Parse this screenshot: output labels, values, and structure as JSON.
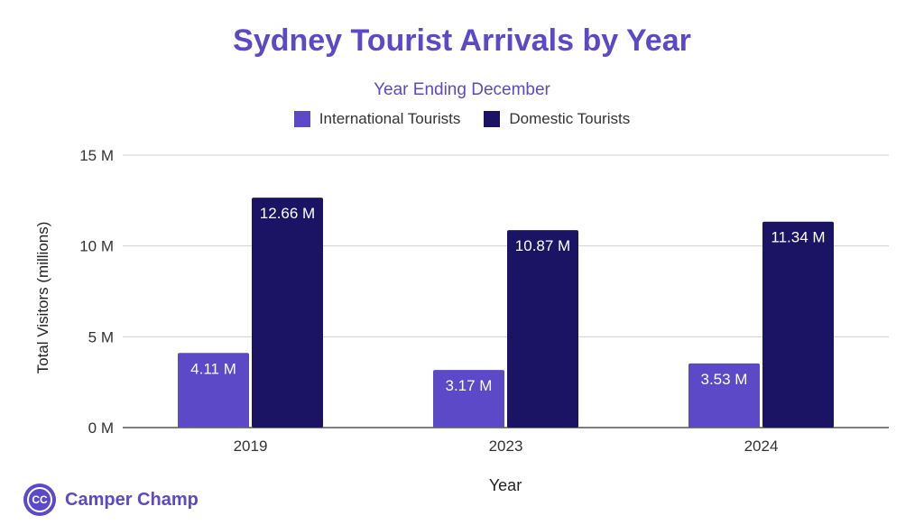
{
  "chart_data": {
    "type": "bar",
    "title": "Sydney Tourist Arrivals by Year",
    "subtitle": "Year Ending December",
    "xlabel": "Year",
    "ylabel": "Total Visitors (millions)",
    "categories": [
      "2019",
      "2023",
      "2024"
    ],
    "series": [
      {
        "name": "International Tourists",
        "color": "#5b49c7",
        "values": [
          4.11,
          3.17,
          3.53
        ],
        "labels": [
          "4.11 M",
          "3.17 M",
          "3.53 M"
        ]
      },
      {
        "name": "Domestic Tourists",
        "color": "#1b1464",
        "values": [
          12.66,
          10.87,
          11.34
        ],
        "labels": [
          "12.66 M",
          "10.87 M",
          "11.34 M"
        ]
      }
    ],
    "ylim": [
      0,
      15
    ],
    "yticks": [
      0,
      5,
      10,
      15
    ],
    "ytick_labels": [
      "0 M",
      "5 M",
      "10 M",
      "15 M"
    ],
    "grid": true,
    "legend_position": "top"
  },
  "brand": {
    "logo_initials": "CC",
    "name": "Camper Champ"
  }
}
